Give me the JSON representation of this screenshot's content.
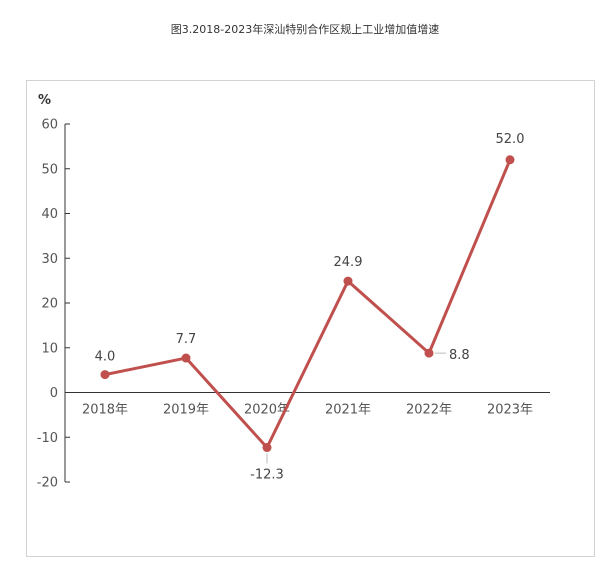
{
  "chart_data": {
    "type": "line",
    "title": "图3.2018-2023年深汕特别合作区规上工业增加值增速",
    "ylabel": "%",
    "xlabel": "",
    "categories": [
      "2018年",
      "2019年",
      "2020年",
      "2021年",
      "2022年",
      "2023年"
    ],
    "values": [
      4.0,
      7.7,
      -12.3,
      24.9,
      8.8,
      52.0
    ],
    "value_labels": [
      "4.0",
      "7.7",
      "-12.3",
      "24.9",
      "8.8",
      "52.0"
    ],
    "ylim": [
      -20,
      60
    ],
    "yticks": [
      60,
      50,
      40,
      30,
      20,
      10,
      0,
      -10,
      -20
    ],
    "grid": false,
    "series_color": "#c0504d"
  }
}
